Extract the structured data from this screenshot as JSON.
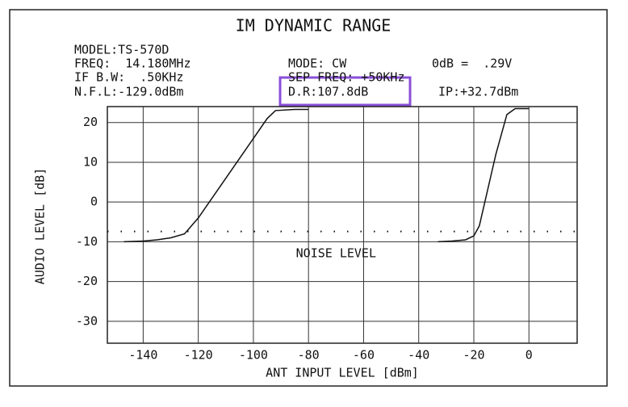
{
  "chart_data": {
    "type": "line",
    "title": "IM DYNAMIC RANGE",
    "annotations": [
      "MODEL:TS-570D",
      "FREQ:  14.180MHz",
      "IF B.W:  .50KHz",
      "N.F.L:-129.0dBm",
      "MODE: CW",
      "0dB =  .29V",
      "SEP FREQ: +50KHz",
      "D.R:107.8dB",
      "IP:+32.7dBm"
    ],
    "xlabel": "ANT INPUT LEVEL [dBm]",
    "ylabel": "AUDIO LEVEL [dB]",
    "xlim": [
      -153,
      17.5
    ],
    "ylim": [
      -35.5,
      24
    ],
    "xticks": [
      -140,
      -120,
      -100,
      -80,
      -60,
      -40,
      -20,
      0
    ],
    "yticks": [
      20,
      10,
      0,
      -10,
      -20,
      -30
    ],
    "grid": true,
    "noise_level": -7.4,
    "noise_label": "NOISE LEVEL",
    "series": [
      {
        "color": "#111111",
        "x": [
          -147,
          -140,
          -135,
          -130,
          -125,
          -120,
          -115,
          -110,
          -105,
          -100,
          -95,
          -92,
          -85,
          -80
        ],
        "values": [
          -10,
          -9.8,
          -9.5,
          -9,
          -8,
          -4,
          1,
          6,
          11,
          16,
          21,
          23,
          23.3,
          23.3
        ]
      },
      {
        "color": "#111111",
        "x": [
          -33,
          -28,
          -23,
          -20,
          -18,
          -16,
          -14,
          -12,
          -10,
          -8,
          -5,
          0
        ],
        "values": [
          -10,
          -9.8,
          -9.5,
          -8.5,
          -6,
          0,
          6,
          12,
          17,
          22,
          23.5,
          23.5
        ]
      }
    ]
  }
}
